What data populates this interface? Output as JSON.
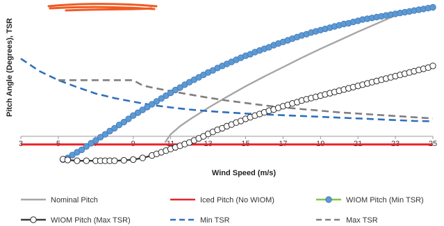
{
  "chart_data": {
    "type": "line",
    "xlabel": "Wind Speed (m/s)",
    "ylabel": "Pitch Angle (Degrees), TSR",
    "xlim": [
      3,
      25
    ],
    "ylim": [
      -6,
      35
    ],
    "x_ticks": [
      "3",
      "5",
      "7",
      "9",
      "11",
      "13",
      "15",
      "17",
      "19",
      "21",
      "23",
      "25"
    ],
    "grid": false,
    "legend_position": "bottom",
    "series": [
      {
        "name": "Nominal Pitch",
        "color": "#a6a6a6",
        "style": "solid",
        "marker": "none",
        "x": [
          10.7,
          11,
          11.5,
          12,
          13,
          14,
          15,
          16,
          17,
          18,
          19,
          20,
          21,
          22,
          23
        ],
        "y": [
          0,
          2,
          4,
          5.6,
          8.5,
          11.2,
          13.8,
          16.2,
          18.5,
          20.8,
          23,
          25.1,
          27.2,
          29.2,
          31.2
        ]
      },
      {
        "name": "Iced Pitch (No WIOM)",
        "color": "#e8232a",
        "style": "solid",
        "marker": "none",
        "x": [
          3,
          25
        ],
        "y": [
          -0.5,
          -0.5
        ]
      },
      {
        "name": "WIOM Pitch (Min TSR)",
        "color": "#7ac943",
        "style": "solid",
        "marker": "circle",
        "marker_fill": "#5b9bd5",
        "x": [
          5.25,
          5.5,
          5.75,
          6,
          6.25,
          6.5,
          6.75,
          7,
          7.25,
          7.5,
          7.75,
          8,
          8.25,
          8.5,
          8.75,
          9,
          9.25,
          9.5,
          9.75,
          10,
          10.25,
          10.5,
          10.75,
          11,
          11.25,
          11.5,
          11.75,
          12,
          12.25,
          12.5,
          12.75,
          13,
          13.25,
          13.5,
          13.75,
          14,
          14.25,
          14.5,
          14.75,
          15,
          15.25,
          15.5,
          15.75,
          16,
          16.25,
          16.5,
          16.75,
          17,
          17.25,
          17.5,
          17.75,
          18,
          18.25,
          18.5,
          18.75,
          19,
          19.25,
          19.5,
          19.75,
          20,
          20.25,
          20.5,
          20.75,
          21,
          21.25,
          21.5,
          21.75,
          22,
          22.25,
          22.5,
          22.75,
          23,
          23.25,
          23.5,
          23.75,
          24,
          24.25,
          24.5,
          24.75,
          25
        ],
        "y": [
          -4.2,
          -3.8,
          -3.1,
          -2.4,
          -1.8,
          -1.0,
          -0.2,
          0.5,
          1.3,
          2.0,
          2.8,
          3.5,
          4.3,
          5.0,
          5.8,
          6.6,
          7.3,
          8.0,
          8.7,
          9.4,
          10.1,
          10.8,
          11.5,
          12.2,
          12.9,
          13.5,
          14.2,
          14.8,
          15.4,
          16.0,
          16.6,
          17.2,
          17.7,
          18.3,
          18.8,
          19.3,
          19.8,
          20.3,
          20.8,
          21.3,
          21.7,
          22.2,
          22.6,
          23.0,
          23.4,
          23.9,
          24.3,
          24.7,
          25.1,
          25.5,
          25.9,
          26.3,
          26.6,
          27.0,
          27.3,
          27.6,
          27.9,
          28.2,
          28.5,
          28.8,
          29.1,
          29.3,
          29.6,
          29.9,
          30.2,
          30.4,
          30.6,
          30.8,
          31.0,
          31.2,
          31.4,
          31.6,
          31.8,
          32.0,
          32.2,
          32.4,
          32.6,
          32.8,
          33.0,
          33.2
        ]
      },
      {
        "name": "WIOM Pitch (Max TSR)",
        "color": "#3a3a3a",
        "style": "solid",
        "marker": "circle",
        "marker_fill": "#ffffff",
        "x": [
          5.25,
          5.5,
          6,
          6.5,
          7,
          7.25,
          7.5,
          7.75,
          8,
          8.5,
          9,
          9.5,
          10,
          10.25,
          10.5,
          10.75,
          11,
          11.25,
          11.5,
          11.75,
          12,
          12.25,
          12.5,
          12.75,
          13,
          13.25,
          13.5,
          13.75,
          14,
          14.25,
          14.5,
          14.75,
          15,
          15.25,
          15.5,
          15.75,
          16,
          16.25,
          16.5,
          16.75,
          17,
          17.25,
          17.5,
          17.75,
          18,
          18.25,
          18.5,
          18.75,
          19,
          19.25,
          19.5,
          19.75,
          20,
          20.25,
          20.5,
          20.75,
          21,
          21.25,
          21.5,
          21.75,
          22,
          22.25,
          22.5,
          22.75,
          23,
          23.25,
          23.5,
          23.75,
          24,
          24.25,
          24.5,
          24.75,
          25
        ],
        "y": [
          -4.1,
          -4.3,
          -4.5,
          -4.5,
          -4.5,
          -4.5,
          -4.5,
          -4.5,
          -4.5,
          -4.4,
          -4.2,
          -3.8,
          -3.2,
          -2.8,
          -2.4,
          -2.0,
          -1.6,
          -1.2,
          -0.8,
          -0.4,
          0,
          0.5,
          1.0,
          1.5,
          2.1,
          2.6,
          3.1,
          3.5,
          4.0,
          4.4,
          4.9,
          5.3,
          5.8,
          6.2,
          6.6,
          7.0,
          7.4,
          7.8,
          8.1,
          8.5,
          8.9,
          9.2,
          9.6,
          9.9,
          10.3,
          10.6,
          10.9,
          11.2,
          11.5,
          11.8,
          12.1,
          12.4,
          12.7,
          13.0,
          13.3,
          13.6,
          13.9,
          14.2,
          14.5,
          14.8,
          15.1,
          15.4,
          15.7,
          16.0,
          16.3,
          16.6,
          16.9,
          17.2,
          17.5,
          17.8,
          18.1,
          18.4,
          18.8
        ]
      },
      {
        "name": "Min TSR",
        "color": "#2e6fbd",
        "style": "dashed",
        "marker": "none",
        "x": [
          3,
          4,
          5,
          6,
          7,
          8,
          9,
          10,
          11,
          12,
          13,
          14,
          15,
          16,
          17,
          18,
          19,
          20,
          21,
          22,
          23,
          24,
          25
        ],
        "y": [
          20.6,
          17.5,
          15.3,
          13.6,
          12.0,
          10.9,
          10.0,
          9.2,
          8.6,
          8.1,
          7.7,
          7.4,
          7.1,
          6.9,
          6.7,
          6.5,
          6.3,
          6.1,
          5.9,
          5.7,
          5.5,
          5.3,
          5.2
        ]
      },
      {
        "name": "Max TSR",
        "color": "#7f7f7f",
        "style": "dashed",
        "marker": "none",
        "x": [
          5,
          6,
          7,
          8,
          9,
          9.5,
          10,
          11,
          12,
          13,
          14,
          15,
          16,
          17,
          18,
          19,
          20,
          21,
          22,
          23,
          24,
          25
        ],
        "y": [
          15.3,
          15.3,
          15.3,
          15.3,
          15.3,
          14.0,
          13.5,
          12.6,
          11.8,
          11.0,
          10.3,
          9.7,
          9.1,
          8.6,
          8.2,
          7.8,
          7.4,
          7.1,
          6.8,
          6.5,
          6.2,
          5.9
        ]
      }
    ]
  }
}
